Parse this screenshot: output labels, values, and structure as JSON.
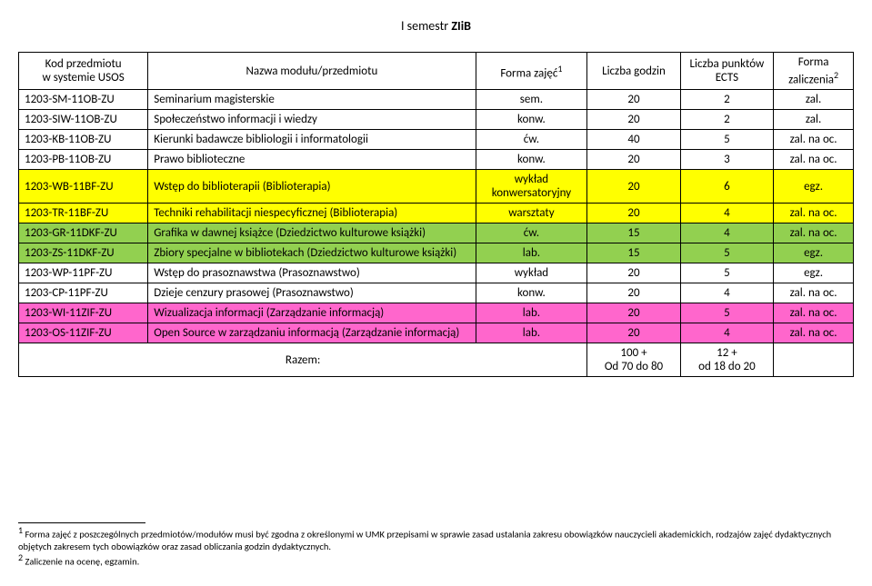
{
  "title_prefix": "I semestr ",
  "title_bold": "ZIiB",
  "header": {
    "code_l1": "Kod przedmiotu",
    "code_l2": "w systemie USOS",
    "name": "Nazwa modułu/przedmiotu",
    "form": "Forma zajęć",
    "form_sup": "1",
    "hours": "Liczba godzin",
    "ects_l1": "Liczba punktów",
    "ects_l2": "ECTS",
    "grade_l1": "Forma",
    "grade_l2": "zaliczenia",
    "grade_sup": "2"
  },
  "rows": [
    {
      "code": "1203-SM-11OB-ZU",
      "name": "Seminarium magisterskie",
      "form": "sem.",
      "hours": "20",
      "ects": "2",
      "grade": "zal.",
      "cls": ""
    },
    {
      "code": "1203-SIW-11OB-ZU",
      "name": "Społeczeństwo informacji i wiedzy",
      "form": "konw.",
      "hours": "20",
      "ects": "2",
      "grade": "zal.",
      "cls": ""
    },
    {
      "code": "1203-KB-11OB-ZU",
      "name": "Kierunki badawcze bibliologii i informatologii",
      "form": "ćw.",
      "hours": "40",
      "ects": "5",
      "grade": "zal. na oc.",
      "cls": ""
    },
    {
      "code": "1203-PB-11OB-ZU",
      "name": "Prawo biblioteczne",
      "form": "konw.",
      "hours": "20",
      "ects": "3",
      "grade": "zal. na oc.",
      "cls": ""
    },
    {
      "code": "1203-WB-11BF-ZU",
      "name": "Wstęp do biblioterapii (Biblioterapia)",
      "form": "wykład konwersatoryjny",
      "hours": "20",
      "ects": "6",
      "grade": "egz.",
      "cls": "yellow"
    },
    {
      "code": "1203-TR-11BF-ZU",
      "name": "Techniki rehabilitacji niespecyficznej (Biblioterapia)",
      "form": "warsztaty",
      "hours": "20",
      "ects": "4",
      "grade": "zal. na oc.",
      "cls": "yellow"
    },
    {
      "code": "1203-GR-11DKF-ZU",
      "name": "Grafika w dawnej książce (Dziedzictwo kulturowe książki)",
      "form": "ćw.",
      "hours": "15",
      "ects": "4",
      "grade": "zal. na oc.",
      "cls": "green"
    },
    {
      "code": "1203-ZS-11DKF-ZU",
      "name": "Zbiory specjalne w bibliotekach (Dziedzictwo kulturowe książki)",
      "form": "lab.",
      "hours": "15",
      "ects": "5",
      "grade": "egz.",
      "cls": "green"
    },
    {
      "code": "1203-WP-11PF-ZU",
      "name": "Wstęp do prasoznawstwa (Prasoznawstwo)",
      "form": "wykład",
      "hours": "20",
      "ects": "5",
      "grade": "egz.",
      "cls": ""
    },
    {
      "code": "1203-CP-11PF-ZU",
      "name": "Dzieje cenzury prasowej (Prasoznawstwo)",
      "form": "konw.",
      "hours": "20",
      "ects": "4",
      "grade": "zal. na oc.",
      "cls": ""
    },
    {
      "code": "1203-WI-11ZIF-ZU",
      "name": "Wizualizacja informacji (Zarządzanie informacją)",
      "form": "lab.",
      "hours": "20",
      "ects": "5",
      "grade": "zal. na oc.",
      "cls": "pink"
    },
    {
      "code": "1203-OS-11ZIF-ZU",
      "name": "Open Source w zarządzaniu informacją (Zarządzanie informacją)",
      "form": "lab.",
      "hours": "20",
      "ects": "4",
      "grade": "zal. na oc.",
      "cls": "pink"
    }
  ],
  "total": {
    "label": "Razem:",
    "hours_l1": "100 +",
    "hours_l2": "Od 70 do 80",
    "ects_l1": "12 +",
    "ects_l2": "od 18 do 20"
  },
  "footnotes": {
    "f1_num": "1",
    "f1_text": " Forma zajęć z poszczególnych przedmiotów/modułów musi być zgodna z określonymi w UMK przepisami w sprawie zasad ustalania zakresu obowiązków nauczycieli akademickich, rodzajów zajęć dydaktycznych objętych zakresem tych obowiązków oraz zasad obliczania godzin dydaktycznych.",
    "f2_num": "2",
    "f2_text": " Zaliczenie na ocenę, egzamin."
  }
}
